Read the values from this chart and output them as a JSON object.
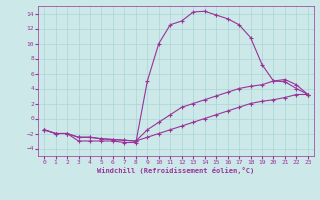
{
  "xlabel": "Windchill (Refroidissement éolien,°C)",
  "background_color": "#cce8e8",
  "grid_color": "#aad4d4",
  "line_color": "#993399",
  "xlim": [
    -0.5,
    23.5
  ],
  "ylim": [
    -5,
    15
  ],
  "xticks": [
    0,
    1,
    2,
    3,
    4,
    5,
    6,
    7,
    8,
    9,
    10,
    11,
    12,
    13,
    14,
    15,
    16,
    17,
    18,
    19,
    20,
    21,
    22,
    23
  ],
  "yticks": [
    -4,
    -2,
    0,
    2,
    4,
    6,
    8,
    10,
    12,
    14
  ],
  "series": [
    {
      "x": [
        0,
        1,
        2,
        3,
        4,
        5,
        6,
        7,
        8,
        9,
        10,
        11,
        12,
        13,
        14,
        15,
        16,
        17,
        18,
        19,
        20,
        21,
        22,
        23
      ],
      "y": [
        -1.5,
        -2,
        -2,
        -3,
        -3,
        -3,
        -3,
        -3.2,
        -3.2,
        5,
        10,
        12.5,
        13,
        14.2,
        14.3,
        13.8,
        13.3,
        12.5,
        10.8,
        7.2,
        5,
        4.9,
        4,
        3.2
      ]
    },
    {
      "x": [
        0,
        1,
        2,
        3,
        4,
        5,
        6,
        7,
        8,
        9,
        10,
        11,
        12,
        13,
        14,
        15,
        16,
        17,
        18,
        19,
        20,
        21,
        22,
        23
      ],
      "y": [
        -1.5,
        -2,
        -2,
        -2.5,
        -2.5,
        -2.7,
        -2.8,
        -2.9,
        -3.0,
        -1.5,
        -0.5,
        0.5,
        1.5,
        2.0,
        2.5,
        3.0,
        3.5,
        4.0,
        4.3,
        4.5,
        5.0,
        5.2,
        4.5,
        3.2
      ]
    },
    {
      "x": [
        0,
        1,
        2,
        3,
        4,
        5,
        6,
        7,
        8,
        9,
        10,
        11,
        12,
        13,
        14,
        15,
        16,
        17,
        18,
        19,
        20,
        21,
        22,
        23
      ],
      "y": [
        -1.5,
        -2,
        -2,
        -2.5,
        -2.5,
        -2.7,
        -2.8,
        -2.9,
        -3.0,
        -2.5,
        -2.0,
        -1.5,
        -1.0,
        -0.5,
        0.0,
        0.5,
        1.0,
        1.5,
        2.0,
        2.3,
        2.5,
        2.8,
        3.2,
        3.2
      ]
    }
  ]
}
